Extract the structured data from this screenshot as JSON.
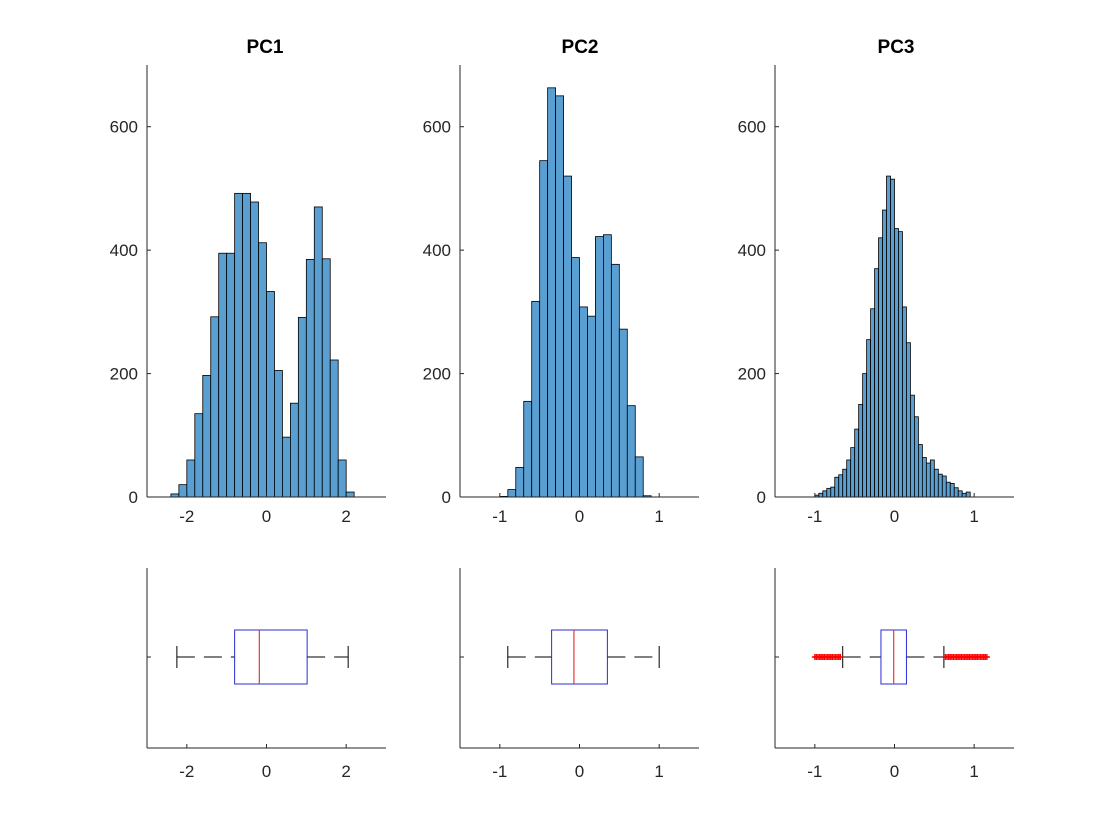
{
  "colors": {
    "bar_fill": "#5a9fd2",
    "bar_edge": "#000000",
    "box_edge": "#2b2bd6",
    "median": "#e53935",
    "whisker": "#000000",
    "outlier": "#ff0000",
    "axis": "#262626"
  },
  "chart_data": [
    {
      "type": "bar",
      "title": "PC1",
      "xlim": [
        -3,
        3
      ],
      "ylim": [
        0,
        700
      ],
      "xticks": [
        -2,
        0,
        2
      ],
      "yticks": [
        0,
        200,
        400,
        600
      ],
      "bin_start": -2.4,
      "bin_width": 0.2,
      "values": [
        5,
        20,
        60,
        135,
        197,
        292,
        395,
        395,
        492,
        492,
        478,
        412,
        333,
        205,
        97,
        152,
        291,
        385,
        470,
        386,
        222,
        60,
        8
      ]
    },
    {
      "type": "bar",
      "title": "PC2",
      "xlim": [
        -1.5,
        1.5
      ],
      "ylim": [
        0,
        700
      ],
      "xticks": [
        -1,
        0,
        1
      ],
      "yticks": [
        0,
        200,
        400,
        600
      ],
      "bin_start": -1.0,
      "bin_width": 0.1,
      "values": [
        1,
        12,
        48,
        155,
        317,
        545,
        663,
        650,
        520,
        388,
        308,
        293,
        422,
        425,
        377,
        272,
        148,
        65,
        2
      ]
    },
    {
      "type": "bar",
      "title": "PC3",
      "xlim": [
        -1.5,
        1.5
      ],
      "ylim": [
        0,
        700
      ],
      "xticks": [
        -1,
        0,
        1
      ],
      "yticks": [
        0,
        200,
        400,
        600
      ],
      "bin_start": -1.0,
      "bin_width": 0.05,
      "values": [
        3,
        6,
        10,
        14,
        16,
        32,
        36,
        45,
        60,
        80,
        110,
        150,
        200,
        255,
        305,
        370,
        420,
        465,
        520,
        515,
        435,
        430,
        308,
        250,
        165,
        130,
        85,
        64,
        55,
        60,
        45,
        37,
        34,
        24,
        22,
        15,
        10,
        6,
        8
      ]
    },
    {
      "type": "box",
      "xlim": [
        -3,
        3
      ],
      "xticks": [
        -2,
        0,
        2
      ],
      "whisker_low": -2.25,
      "q1": -0.8,
      "median": -0.18,
      "q3": 1.02,
      "whisker_high": 2.05,
      "outliers": []
    },
    {
      "type": "box",
      "xlim": [
        -1.5,
        1.5
      ],
      "xticks": [
        -1,
        0,
        1
      ],
      "whisker_low": -0.9,
      "q1": -0.35,
      "median": -0.07,
      "q3": 0.35,
      "whisker_high": 1.0,
      "outliers": []
    },
    {
      "type": "box",
      "xlim": [
        -1.5,
        1.5
      ],
      "xticks": [
        -1,
        0,
        1
      ],
      "whisker_low": -0.65,
      "q1": -0.17,
      "median": -0.01,
      "q3": 0.15,
      "whisker_high": 0.62,
      "outliers": [
        -1.0,
        -0.98,
        -0.96,
        -0.94,
        -0.92,
        -0.9,
        -0.88,
        -0.86,
        -0.84,
        -0.82,
        -0.8,
        -0.78,
        -0.76,
        -0.74,
        -0.72,
        -0.7,
        -0.68,
        0.64,
        0.66,
        0.68,
        0.7,
        0.72,
        0.74,
        0.76,
        0.78,
        0.8,
        0.82,
        0.84,
        0.86,
        0.88,
        0.9,
        0.92,
        0.94,
        0.96,
        0.98,
        1.0,
        1.02,
        1.04,
        1.06,
        1.08,
        1.1,
        1.12,
        1.14,
        1.16
      ]
    }
  ]
}
